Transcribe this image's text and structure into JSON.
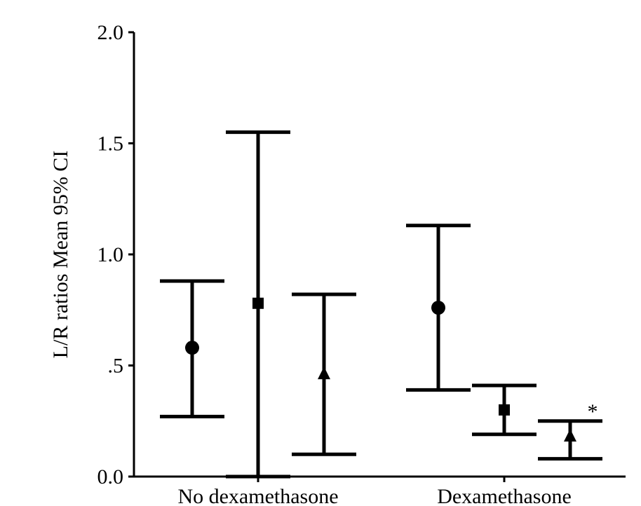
{
  "chart_data": {
    "type": "scatter",
    "subtype": "error-bar",
    "title": "",
    "ylabel": "L/R ratios Mean 95% CI",
    "xlabel": "",
    "ylim": [
      0,
      2.0
    ],
    "yticks": [
      {
        "value": 0.0,
        "label": "0.0"
      },
      {
        "value": 0.5,
        "label": ".5"
      },
      {
        "value": 1.0,
        "label": "1.0"
      },
      {
        "value": 1.5,
        "label": "1.5"
      },
      {
        "value": 2.0,
        "label": "2.0"
      }
    ],
    "categories": [
      "No dexamethasone",
      "Dexamethasone"
    ],
    "grid": false,
    "series": [
      {
        "marker": "circle",
        "points": [
          {
            "category": "No dexamethasone",
            "mean": 0.58,
            "lower": 0.27,
            "upper": 0.88
          },
          {
            "category": "Dexamethasone",
            "mean": 0.76,
            "lower": 0.39,
            "upper": 1.13
          }
        ]
      },
      {
        "marker": "square",
        "points": [
          {
            "category": "No dexamethasone",
            "mean": 0.78,
            "lower": 0.0,
            "upper": 1.55
          },
          {
            "category": "Dexamethasone",
            "mean": 0.3,
            "lower": 0.19,
            "upper": 0.41
          }
        ]
      },
      {
        "marker": "triangle",
        "points": [
          {
            "category": "No dexamethasone",
            "mean": 0.46,
            "lower": 0.1,
            "upper": 0.82
          },
          {
            "category": "Dexamethasone",
            "mean": 0.18,
            "lower": 0.08,
            "upper": 0.25
          }
        ]
      }
    ],
    "annotations": [
      {
        "text": "*",
        "category": "Dexamethasone",
        "series_marker": "triangle"
      }
    ]
  }
}
